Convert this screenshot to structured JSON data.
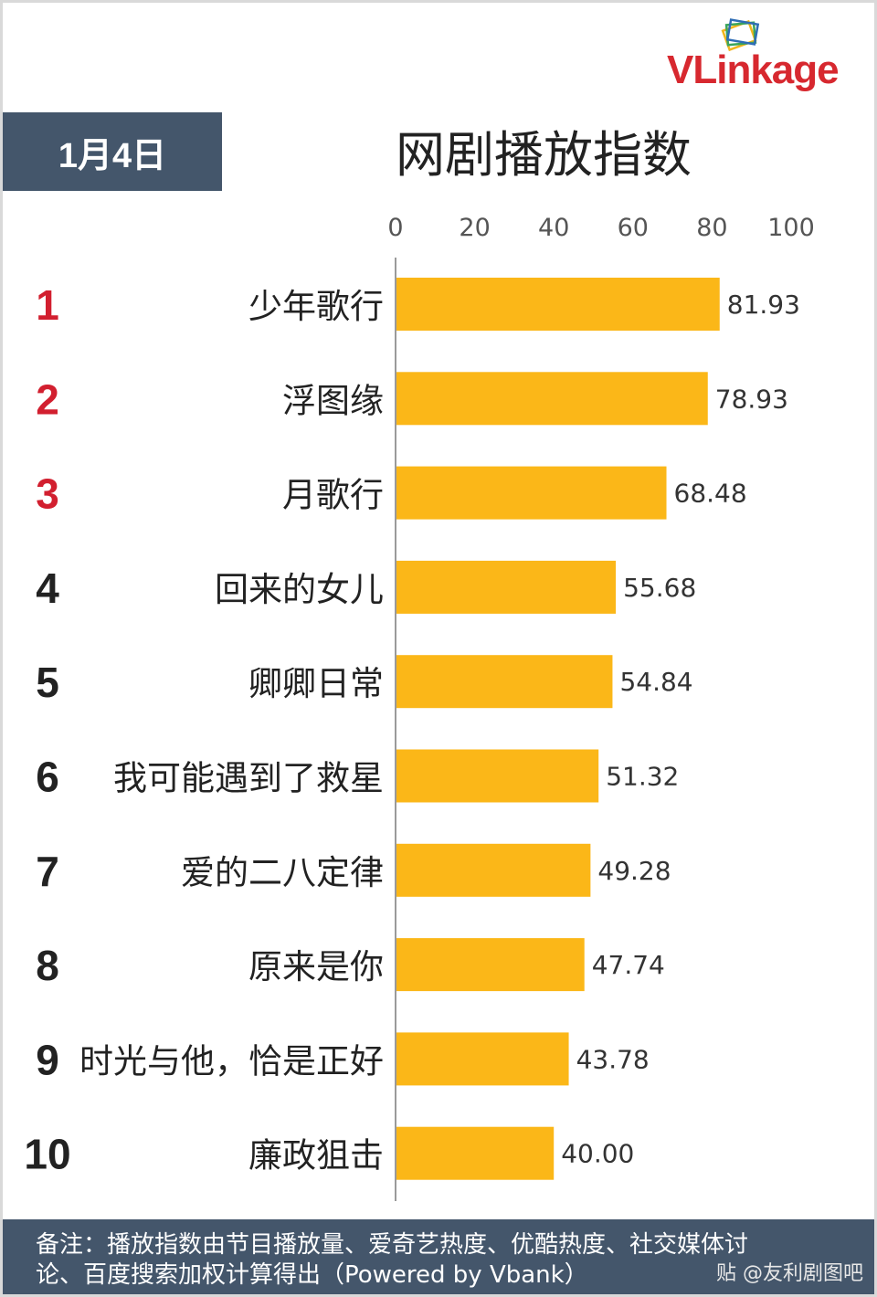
{
  "logo": {
    "text": "VLinkage"
  },
  "date_label": "1月4日",
  "chart_data": {
    "type": "bar",
    "orientation": "horizontal",
    "title": "网剧播放指数",
    "xlim": [
      0,
      100
    ],
    "x_ticks": [
      0,
      20,
      40,
      60,
      80,
      100
    ],
    "categories": [
      "少年歌行",
      "浮图缘",
      "月歌行",
      "回来的女儿",
      "卿卿日常",
      "我可能遇到了救星",
      "爱的二八定律",
      "原来是你",
      "时光与他，恰是正好",
      "廉政狙击"
    ],
    "ranks": [
      "1",
      "2",
      "3",
      "4",
      "5",
      "6",
      "7",
      "8",
      "9",
      "10"
    ],
    "values": [
      81.93,
      78.93,
      68.48,
      55.68,
      54.84,
      51.32,
      49.28,
      47.74,
      43.78,
      40.0
    ],
    "value_labels": [
      "81.93",
      "78.93",
      "68.48",
      "55.68",
      "54.84",
      "51.32",
      "49.28",
      "47.74",
      "43.78",
      "40.00"
    ],
    "bar_color": "#fbb718",
    "top_rank_color": "#d21f2f",
    "rank_color": "#222222",
    "grid": false,
    "legend": "none"
  },
  "footnote": {
    "line1": "备注：播放指数由节目播放量、爱奇艺热度、优酷热度、社交媒体讨",
    "line2": "论、百度搜索加权计算得出（Powered by Vbank）"
  },
  "watermark": "贴 @友利剧图吧"
}
